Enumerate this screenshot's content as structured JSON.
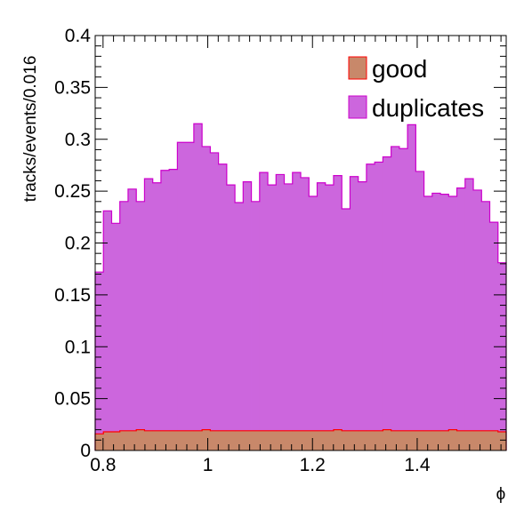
{
  "chart_data": {
    "type": "bar",
    "xlabel": "ϕ",
    "ylabel": "tracks/events/0.016",
    "xlim": [
      0.785,
      1.57
    ],
    "ylim": [
      0,
      0.4
    ],
    "bin_width": 0.016,
    "x_tick_labels": [
      "0.8",
      "1",
      "1.2",
      "1.4"
    ],
    "y_tick_labels": [
      "0",
      "0.05",
      "0.1",
      "0.15",
      "0.2",
      "0.25",
      "0.3",
      "0.35",
      "0.4"
    ],
    "x_ticks": [
      0.8,
      1.0,
      1.2,
      1.4
    ],
    "y_ticks": [
      0,
      0.05,
      0.1,
      0.15,
      0.2,
      0.25,
      0.3,
      0.35,
      0.4
    ],
    "legend_position": "top-right",
    "series": [
      {
        "name": "good",
        "fill": "#c8886a",
        "line": "#ff0000",
        "values": [
          0.016,
          0.018,
          0.018,
          0.019,
          0.019,
          0.02,
          0.019,
          0.019,
          0.019,
          0.019,
          0.019,
          0.019,
          0.019,
          0.02,
          0.019,
          0.019,
          0.019,
          0.019,
          0.019,
          0.019,
          0.019,
          0.019,
          0.019,
          0.019,
          0.019,
          0.019,
          0.019,
          0.019,
          0.019,
          0.02,
          0.019,
          0.019,
          0.019,
          0.019,
          0.019,
          0.02,
          0.019,
          0.019,
          0.019,
          0.019,
          0.019,
          0.019,
          0.019,
          0.02,
          0.019,
          0.019,
          0.019,
          0.019,
          0.019,
          0.018
        ]
      },
      {
        "name": "duplicates",
        "fill": "#cc66dd",
        "line": "#cc00cc",
        "values": [
          0.172,
          0.231,
          0.219,
          0.24,
          0.252,
          0.24,
          0.262,
          0.258,
          0.27,
          0.271,
          0.297,
          0.297,
          0.315,
          0.293,
          0.287,
          0.276,
          0.256,
          0.239,
          0.259,
          0.24,
          0.268,
          0.256,
          0.266,
          0.257,
          0.268,
          0.263,
          0.245,
          0.258,
          0.256,
          0.265,
          0.233,
          0.264,
          0.259,
          0.276,
          0.278,
          0.283,
          0.293,
          0.291,
          0.314,
          0.269,
          0.245,
          0.248,
          0.247,
          0.245,
          0.253,
          0.262,
          0.251,
          0.24,
          0.22,
          0.181
        ]
      }
    ]
  }
}
